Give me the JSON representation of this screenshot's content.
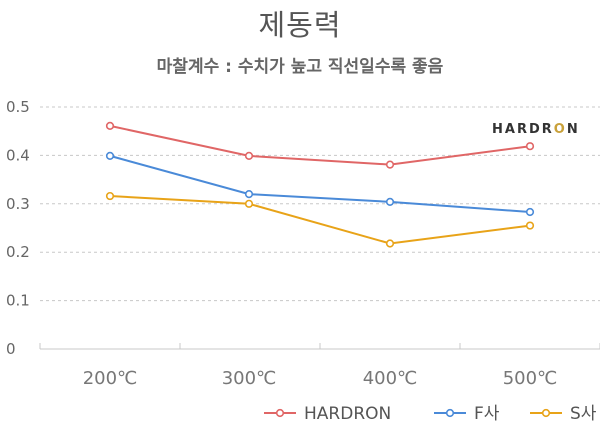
{
  "chart_data": {
    "type": "line",
    "title": "제동력",
    "subtitle": "마찰계수 : 수치가 높고 직선일수록 좋음",
    "categories": [
      "200℃",
      "300℃",
      "400℃",
      "500℃"
    ],
    "y_ticks": [
      "0",
      "0.1",
      "0.2",
      "0.3",
      "0.4",
      "0.5"
    ],
    "ylim": [
      0,
      0.5
    ],
    "grid": true,
    "legend_position": "bottom-right",
    "series": [
      {
        "name": "HARDRON",
        "color": "#e06666",
        "values": [
          0.461,
          0.399,
          0.381,
          0.419
        ]
      },
      {
        "name": "F사",
        "color": "#4a8ad8",
        "values": [
          0.399,
          0.32,
          0.304,
          0.283
        ]
      },
      {
        "name": "S사",
        "color": "#e8a318",
        "values": [
          0.316,
          0.3,
          0.218,
          0.255
        ]
      }
    ]
  },
  "brand": {
    "text_main": "HARDR",
    "text_o": "O",
    "text_end": "N",
    "accent_color": "#c9a13a"
  }
}
